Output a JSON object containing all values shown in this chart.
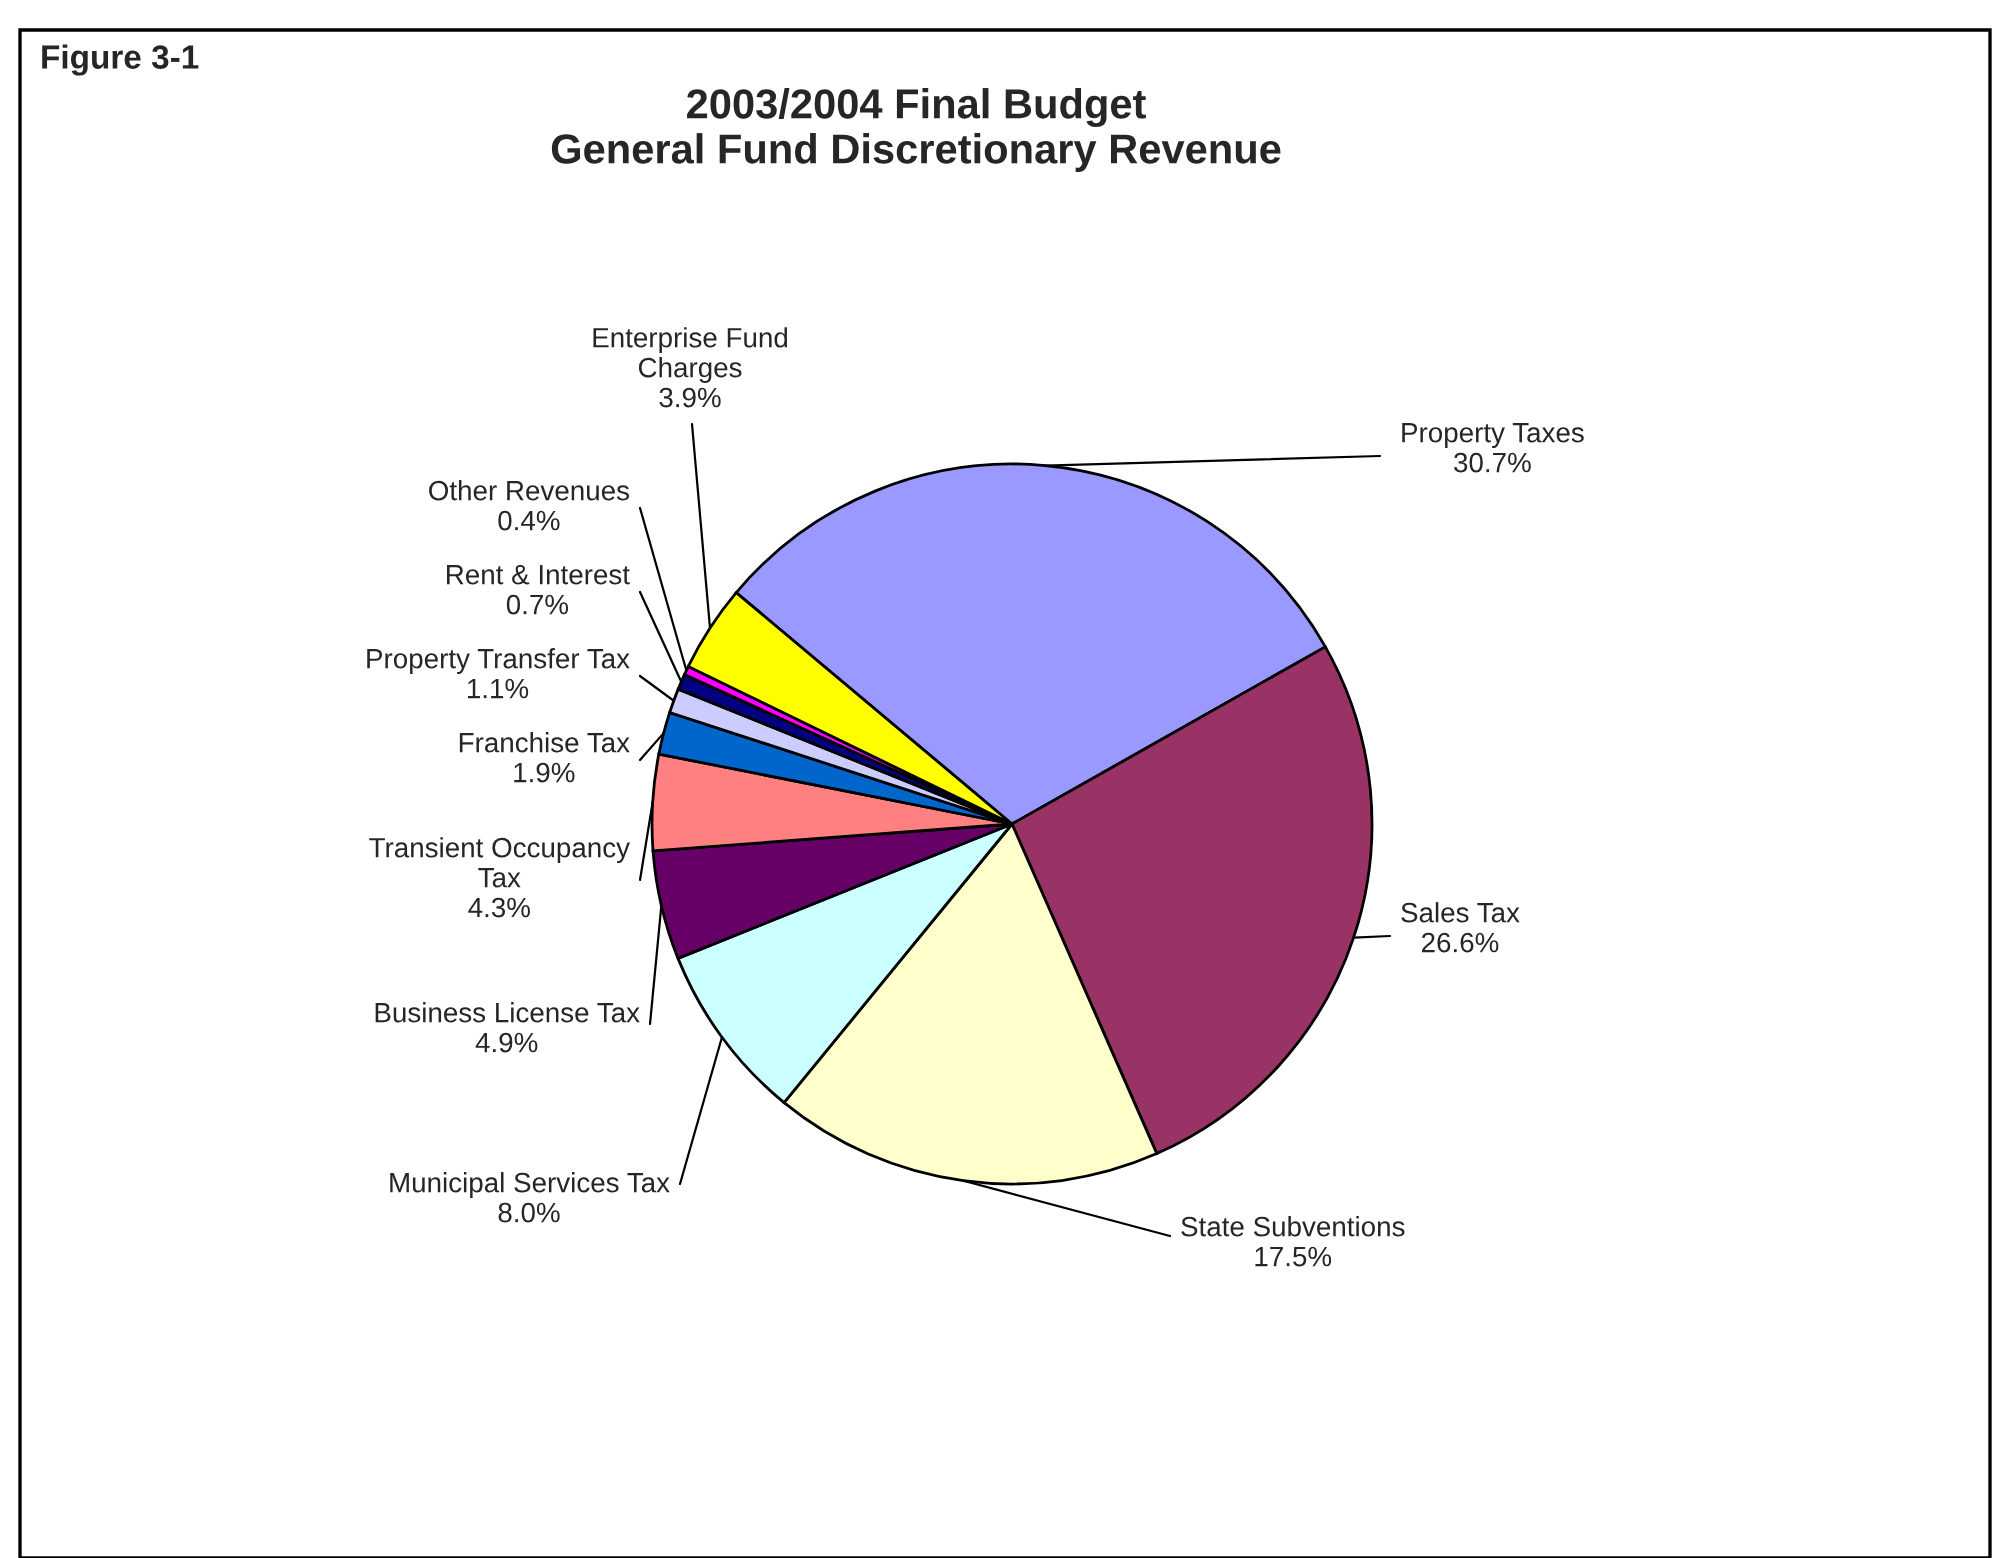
{
  "chart_data": {
    "type": "pie",
    "title": "2003/2004 Final Budget\nGeneral Fund Discretionary Revenue",
    "categories": [
      "Property Taxes",
      "Sales Tax",
      "State Subventions",
      "Municipal Services Tax",
      "Business License Tax",
      "Transient Occupancy\nTax",
      "Franchise Tax",
      "Property Transfer Tax",
      "Rent & Interest",
      "Other Revenues",
      "Enterprise Fund\nCharges"
    ],
    "values": [
      30.7,
      26.6,
      17.5,
      8.0,
      4.9,
      4.3,
      1.9,
      1.1,
      0.7,
      0.4,
      3.9
    ],
    "value_labels": [
      "30.7%",
      "26.6%",
      "17.5%",
      "8.0%",
      "4.9%",
      "4.3%",
      "1.9%",
      "1.1%",
      "0.7%",
      "0.4%",
      "3.9%"
    ],
    "colors": [
      "#9999ff",
      "#993366",
      "#ffffcc",
      "#ccffff",
      "#660066",
      "#ff8080",
      "#0066cc",
      "#ccccff",
      "#000080",
      "#ff00ff",
      "#ffff00"
    ],
    "annotations": [
      "Figure 3-1"
    ]
  }
}
